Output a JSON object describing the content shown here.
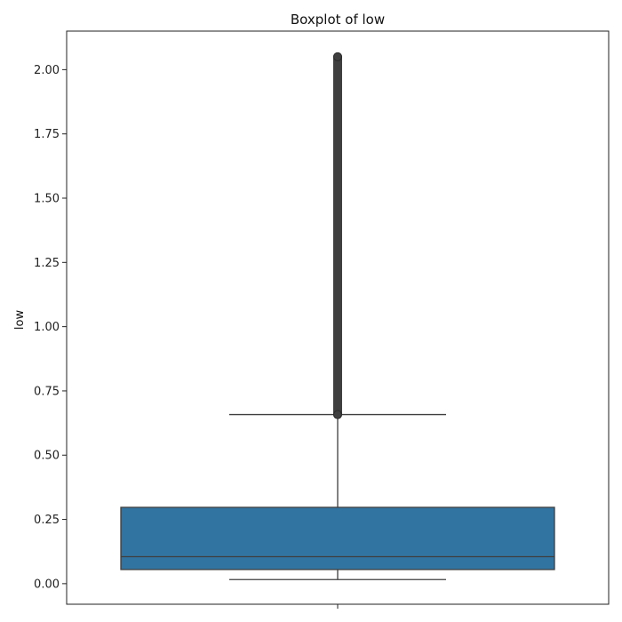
{
  "chart_data": {
    "type": "boxplot",
    "title": "Boxplot of low",
    "xlabel": "",
    "ylabel": "low",
    "ylim": [
      -0.08,
      2.15
    ],
    "yticks": [
      0.0,
      0.25,
      0.5,
      0.75,
      1.0,
      1.25,
      1.5,
      1.75,
      2.0
    ],
    "ytick_labels": [
      "0.00",
      "0.25",
      "0.50",
      "0.75",
      "1.00",
      "1.25",
      "1.50",
      "1.75",
      "2.00"
    ],
    "grid": false,
    "box": {
      "whisker_low": 0.016,
      "q1": 0.055,
      "median": 0.105,
      "q3": 0.297,
      "whisker_high": 0.658,
      "outliers_range": [
        0.658,
        2.05
      ]
    },
    "colors": {
      "box_fill": "#3274a1",
      "line": "#3f3f3f",
      "outlier": "#3f3f3f"
    }
  }
}
